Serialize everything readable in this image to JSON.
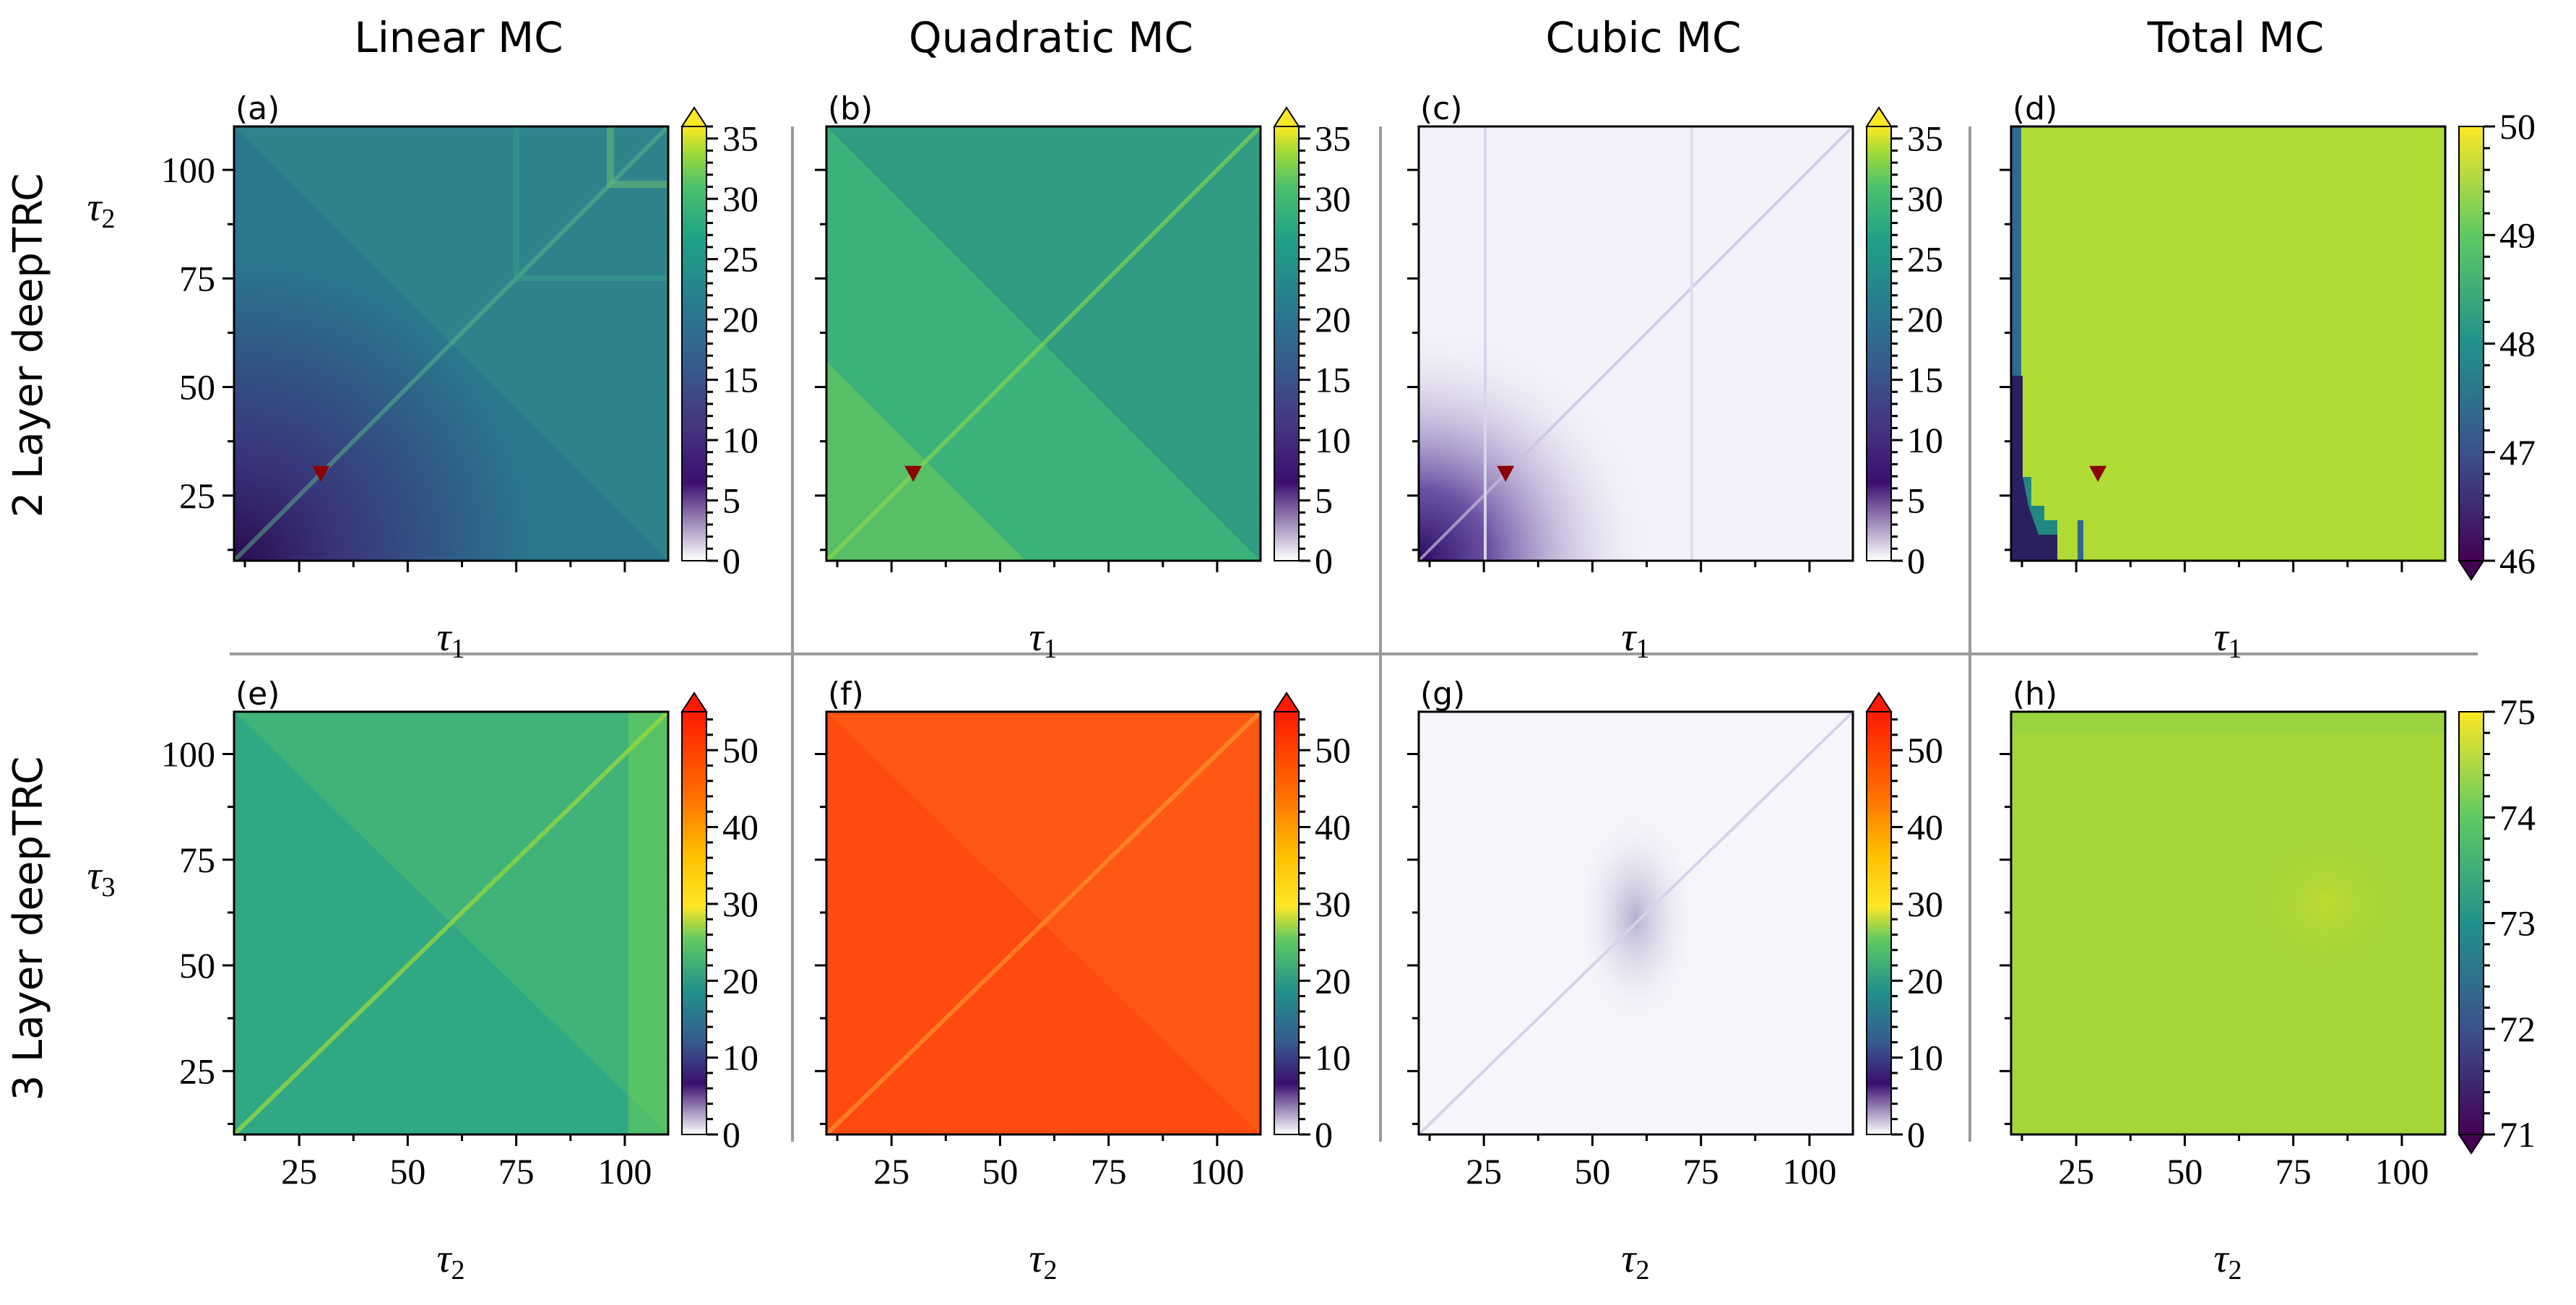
{
  "col_titles": [
    "Linear MC",
    "Quadratic MC",
    "Cubic MC",
    "Total MC"
  ],
  "row_titles": [
    "2 Layer deepTRC",
    "3 Layer deepTRC"
  ],
  "chart_data": [
    {
      "type": "heatmap",
      "panel": "(a)",
      "title": "Linear MC",
      "row": "2 Layer deepTRC",
      "xlabel": "τ1",
      "ylabel": "τ2",
      "x_range": [
        10,
        110
      ],
      "y_range": [
        10,
        110
      ],
      "x_ticks": [],
      "y_ticks": [
        25,
        50,
        75,
        100
      ],
      "colorbar": {
        "ticks": [
          0,
          5,
          10,
          15,
          20,
          25,
          30,
          35
        ],
        "range": [
          0,
          36
        ],
        "extend": "max",
        "colormap": "white-purple-viridis"
      },
      "marker": {
        "shape": "triangle-down",
        "color": "#8b0000",
        "x": 30,
        "y": 30
      },
      "typical_value": 13
    },
    {
      "type": "heatmap",
      "panel": "(b)",
      "title": "Quadratic MC",
      "row": "2 Layer deepTRC",
      "xlabel": "τ1",
      "ylabel": "τ2",
      "x_range": [
        10,
        110
      ],
      "y_range": [
        10,
        110
      ],
      "x_ticks": [],
      "y_ticks": [],
      "colorbar": {
        "ticks": [
          0,
          5,
          10,
          15,
          20,
          25,
          30,
          35
        ],
        "range": [
          0,
          36
        ],
        "extend": "max",
        "colormap": "white-purple-viridis"
      },
      "marker": {
        "shape": "triangle-down",
        "color": "#8b0000",
        "x": 30,
        "y": 30
      },
      "typical_value": 24
    },
    {
      "type": "heatmap",
      "panel": "(c)",
      "title": "Cubic MC",
      "row": "2 Layer deepTRC",
      "xlabel": "τ1",
      "ylabel": "τ2",
      "x_range": [
        10,
        110
      ],
      "y_range": [
        10,
        110
      ],
      "x_ticks": [],
      "y_ticks": [],
      "colorbar": {
        "ticks": [
          0,
          5,
          10,
          15,
          20,
          25,
          30,
          35
        ],
        "range": [
          0,
          36
        ],
        "extend": "max",
        "colormap": "white-purple-viridis"
      },
      "marker": {
        "shape": "triangle-down",
        "color": "#8b0000",
        "x": 30,
        "y": 30
      },
      "typical_value": 1
    },
    {
      "type": "heatmap",
      "panel": "(d)",
      "title": "Total MC",
      "row": "2 Layer deepTRC",
      "xlabel": "τ1",
      "ylabel": "τ2",
      "x_range": [
        10,
        110
      ],
      "y_range": [
        10,
        110
      ],
      "x_ticks": [],
      "y_ticks": [],
      "colorbar": {
        "ticks": [
          46,
          47,
          48,
          49,
          50
        ],
        "range": [
          46,
          50
        ],
        "extend": "min",
        "colormap": "viridis"
      },
      "marker": {
        "shape": "triangle-down",
        "color": "#8b0000",
        "x": 30,
        "y": 30
      },
      "typical_value": 49.5
    },
    {
      "type": "heatmap",
      "panel": "(e)",
      "title": "Linear MC",
      "row": "3 Layer deepTRC",
      "xlabel": "τ2",
      "ylabel": "τ3",
      "x_range": [
        10,
        110
      ],
      "y_range": [
        10,
        110
      ],
      "x_ticks": [
        25,
        50,
        75,
        100
      ],
      "y_ticks": [
        25,
        50,
        75,
        100
      ],
      "colorbar": {
        "ticks": [
          0,
          10,
          20,
          30,
          40,
          50
        ],
        "range": [
          0,
          55
        ],
        "extend": "max",
        "colormap": "white-purple-viridis-red"
      },
      "typical_value": 22
    },
    {
      "type": "heatmap",
      "panel": "(f)",
      "title": "Quadratic MC",
      "row": "3 Layer deepTRC",
      "xlabel": "τ2",
      "ylabel": "τ3",
      "x_range": [
        10,
        110
      ],
      "y_range": [
        10,
        110
      ],
      "x_ticks": [
        25,
        50,
        75,
        100
      ],
      "y_ticks": [],
      "colorbar": {
        "ticks": [
          0,
          10,
          20,
          30,
          40,
          50
        ],
        "range": [
          0,
          55
        ],
        "extend": "max",
        "colormap": "white-purple-viridis-red"
      },
      "typical_value": 50
    },
    {
      "type": "heatmap",
      "panel": "(g)",
      "title": "Cubic MC",
      "row": "3 Layer deepTRC",
      "xlabel": "τ2",
      "ylabel": "τ3",
      "x_range": [
        10,
        110
      ],
      "y_range": [
        10,
        110
      ],
      "x_ticks": [
        25,
        50,
        75,
        100
      ],
      "y_ticks": [],
      "colorbar": {
        "ticks": [
          0,
          10,
          20,
          30,
          40,
          50
        ],
        "range": [
          0,
          55
        ],
        "extend": "max",
        "colormap": "white-purple-viridis-red"
      },
      "typical_value": 1
    },
    {
      "type": "heatmap",
      "panel": "(h)",
      "title": "Total MC",
      "row": "3 Layer deepTRC",
      "xlabel": "τ2",
      "ylabel": "τ3",
      "x_range": [
        10,
        110
      ],
      "y_range": [
        10,
        110
      ],
      "x_ticks": [
        25,
        50,
        75,
        100
      ],
      "y_ticks": [],
      "colorbar": {
        "ticks": [
          71,
          72,
          73,
          74,
          75
        ],
        "range": [
          71,
          75
        ],
        "extend": "min",
        "colormap": "viridis"
      },
      "typical_value": 74
    }
  ]
}
